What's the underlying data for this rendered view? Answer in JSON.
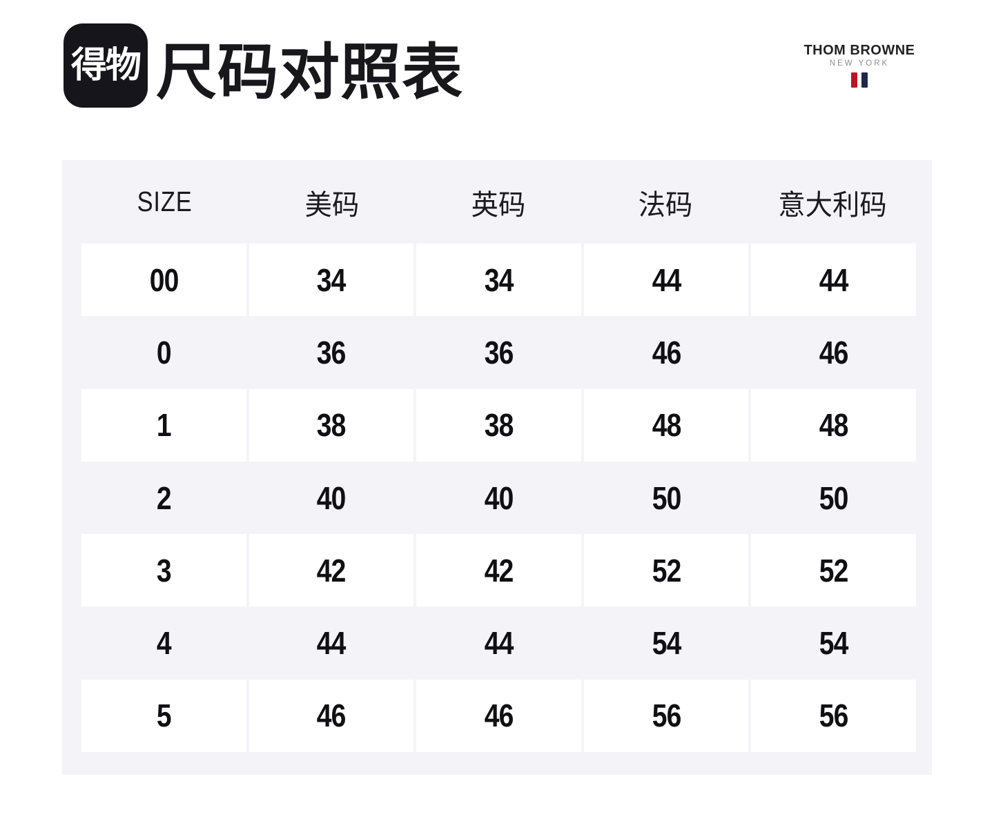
{
  "header": {
    "app_logo_text": "得物",
    "title": "尺码对照表",
    "brand": {
      "name": "THOM BROWNE",
      "subtitle": "NEW YORK"
    }
  },
  "colors": {
    "logo_background": "#15151b",
    "table_background": "#f4f4f8",
    "row_white": "#ffffff",
    "text_dark": "#101014",
    "stripe_red": "#bb1722",
    "stripe_navy": "#20264a"
  },
  "chart_data": {
    "type": "table",
    "title": "尺码对照表",
    "columns": [
      "SIZE",
      "美码",
      "英码",
      "法码",
      "意大利码"
    ],
    "rows": [
      [
        "00",
        "34",
        "34",
        "44",
        "44"
      ],
      [
        "0",
        "36",
        "36",
        "46",
        "46"
      ],
      [
        "1",
        "38",
        "38",
        "48",
        "48"
      ],
      [
        "2",
        "40",
        "40",
        "50",
        "50"
      ],
      [
        "3",
        "42",
        "42",
        "52",
        "52"
      ],
      [
        "4",
        "44",
        "44",
        "54",
        "54"
      ],
      [
        "5",
        "46",
        "46",
        "56",
        "56"
      ]
    ],
    "layout": {
      "row_striping": [
        "white",
        "gray",
        "white",
        "gray",
        "white",
        "gray",
        "white"
      ],
      "header_position": "top",
      "grid": "off"
    }
  }
}
